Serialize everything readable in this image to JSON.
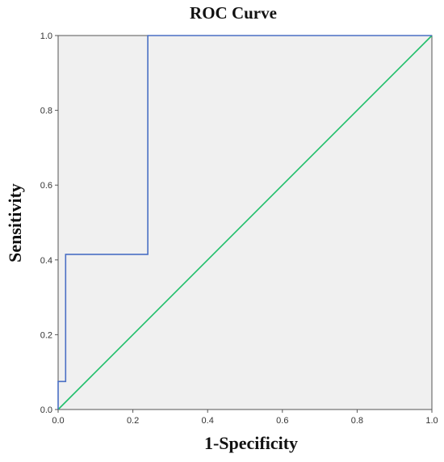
{
  "chart_data": {
    "type": "line",
    "title": "ROC Curve",
    "xlabel": "1-Specificity",
    "ylabel": "Sensitivity",
    "xlim": [
      0.0,
      1.0
    ],
    "ylim": [
      0.0,
      1.0
    ],
    "xticks": [
      "0.0",
      "0.2",
      "0.4",
      "0.6",
      "0.8",
      "1.0"
    ],
    "yticks": [
      "0.0",
      "0.2",
      "0.4",
      "0.6",
      "0.8",
      "1.0"
    ],
    "grid": false,
    "plot_background": "#f0f0f0",
    "series": [
      {
        "color": "#4a6fc4",
        "style": "step",
        "points": [
          [
            0.0,
            0.0
          ],
          [
            0.0,
            0.075
          ],
          [
            0.02,
            0.075
          ],
          [
            0.02,
            0.415
          ],
          [
            0.24,
            0.415
          ],
          [
            0.24,
            1.0
          ],
          [
            1.0,
            1.0
          ]
        ]
      },
      {
        "color": "#1fbf6a",
        "style": "reference",
        "points": [
          [
            0.0,
            0.0
          ],
          [
            1.0,
            1.0
          ]
        ]
      }
    ]
  }
}
